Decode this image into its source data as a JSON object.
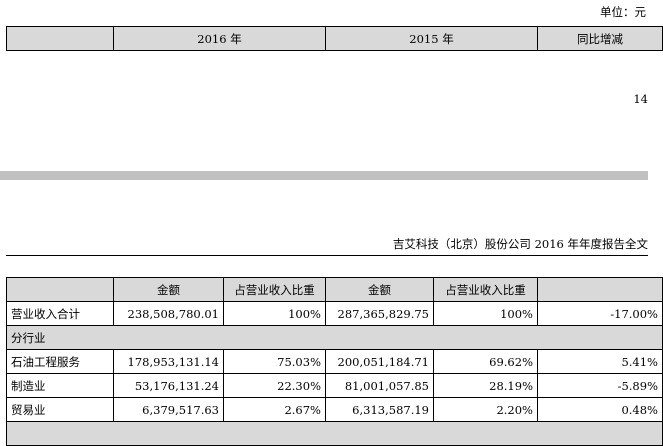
{
  "unit_label": "单位：元",
  "top_table": {
    "cols": [
      "",
      "2016 年",
      "2015 年",
      "同比增减"
    ]
  },
  "page_number": "14",
  "running_header": "吉艾科技（北京）股份公司 2016 年年度报告全文",
  "main_table": {
    "header": [
      "",
      "金额",
      "占营业收入比重",
      "金额",
      "占营业收入比重",
      ""
    ],
    "rows": [
      {
        "label": "营业收入合计",
        "c1": "238,508,780.01",
        "c2": "100%",
        "c3": "287,365,829.75",
        "c4": "100%",
        "c5": "-17.00%"
      },
      {
        "label": "石油工程服务",
        "c1": "178,953,131.14",
        "c2": "75.03%",
        "c3": "200,051,184.71",
        "c4": "69.62%",
        "c5": "5.41%"
      },
      {
        "label": "制造业",
        "c1": "53,176,131.24",
        "c2": "22.30%",
        "c3": "81,001,057.85",
        "c4": "28.19%",
        "c5": "-5.89%"
      },
      {
        "label": "贸易业",
        "c1": "6,379,517.63",
        "c2": "2.67%",
        "c3": "6,313,587.19",
        "c4": "2.20%",
        "c5": "0.48%"
      }
    ],
    "section_label": "分行业"
  }
}
